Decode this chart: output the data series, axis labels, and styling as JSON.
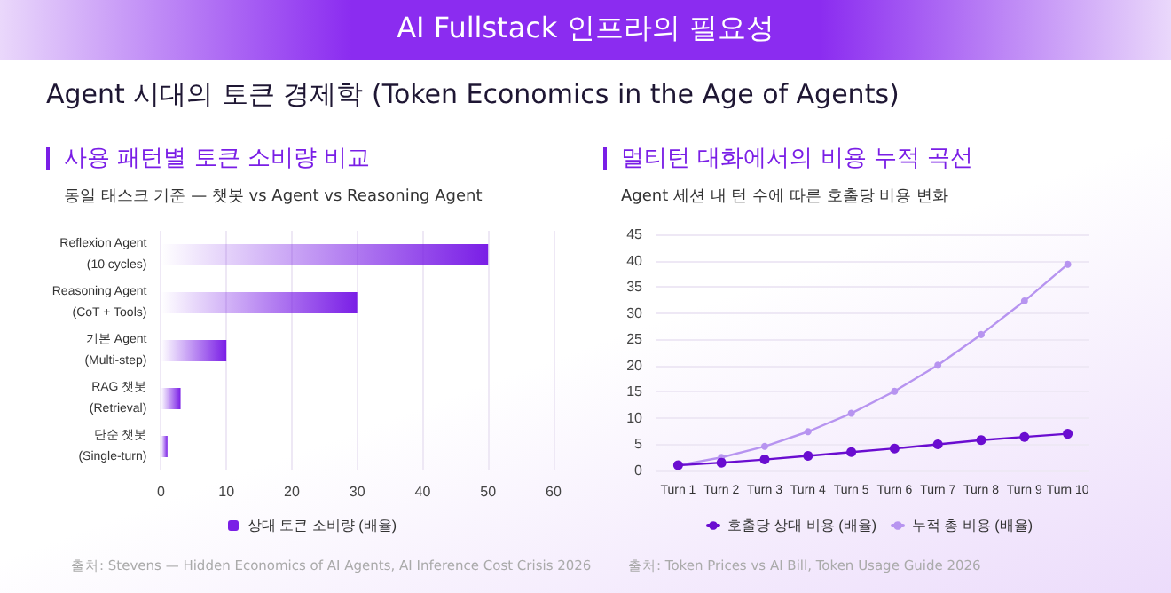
{
  "chart_data": [
    {
      "type": "other",
      "title": "AI Fullstack 인프라의 필요성",
      "subtitle": "Agent 시대의 토큰 경제학 (Token Economics in the Age of Agents)"
    },
    {
      "type": "bar",
      "title": "사용 패턴별 토큰 소비량 비교",
      "subtitle": "동일 태스크 기준 — 챗봇 vs Agent vs Reasoning Agent",
      "orientation": "horizontal",
      "categories": [
        "Reflexion Agent\n(10 cycles)",
        "Reasoning Agent\n(CoT + Tools)",
        "기본 Agent\n(Multi-step)",
        "RAG 챗봇\n(Retrieval)",
        "단순 챗봇\n(Single-turn)"
      ],
      "series": [
        {
          "name": "상대 토큰 소비량 (배율)",
          "color": "#7a1ee6",
          "values": [
            50,
            30,
            10,
            3,
            1
          ]
        }
      ],
      "xlim": [
        0,
        60
      ],
      "xticks": [
        0,
        10,
        20,
        30,
        40,
        50,
        60
      ],
      "grid": "x",
      "legend": "bottom",
      "annotations": [
        "출처: Stevens — Hidden Economics of AI Agents, AI Inference Cost Crisis 2026"
      ]
    },
    {
      "type": "line",
      "title": "멀티턴 대화에서의 비용 누적 곡선",
      "subtitle": "Agent 세션 내 턴 수에 따른 호출당 비용 변화",
      "categories": [
        "Turn 1",
        "Turn 2",
        "Turn 3",
        "Turn 4",
        "Turn 5",
        "Turn 6",
        "Turn 7",
        "Turn 8",
        "Turn 9",
        "Turn 10"
      ],
      "series": [
        {
          "name": "호출당 상대 비용 (배율)",
          "color": "#6a0dd0",
          "values": [
            1,
            1.5,
            2.1,
            2.8,
            3.5,
            4.2,
            5.0,
            5.8,
            6.4,
            7.0
          ]
        },
        {
          "name": "누적 총 비용 (배율)",
          "color": "#b794f0",
          "values": [
            1,
            2.5,
            4.6,
            7.4,
            10.9,
            15.1,
            20.1,
            25.9,
            32.3,
            39.3
          ]
        }
      ],
      "ylim": [
        0,
        45
      ],
      "yticks": [
        0,
        5,
        10,
        15,
        20,
        25,
        30,
        35,
        40,
        45
      ],
      "grid": "y",
      "legend": "bottom",
      "marker": "circle",
      "line_style": "solid",
      "annotations": [
        "출처: Token Prices vs AI Bill, Token Usage Guide 2026"
      ]
    }
  ]
}
